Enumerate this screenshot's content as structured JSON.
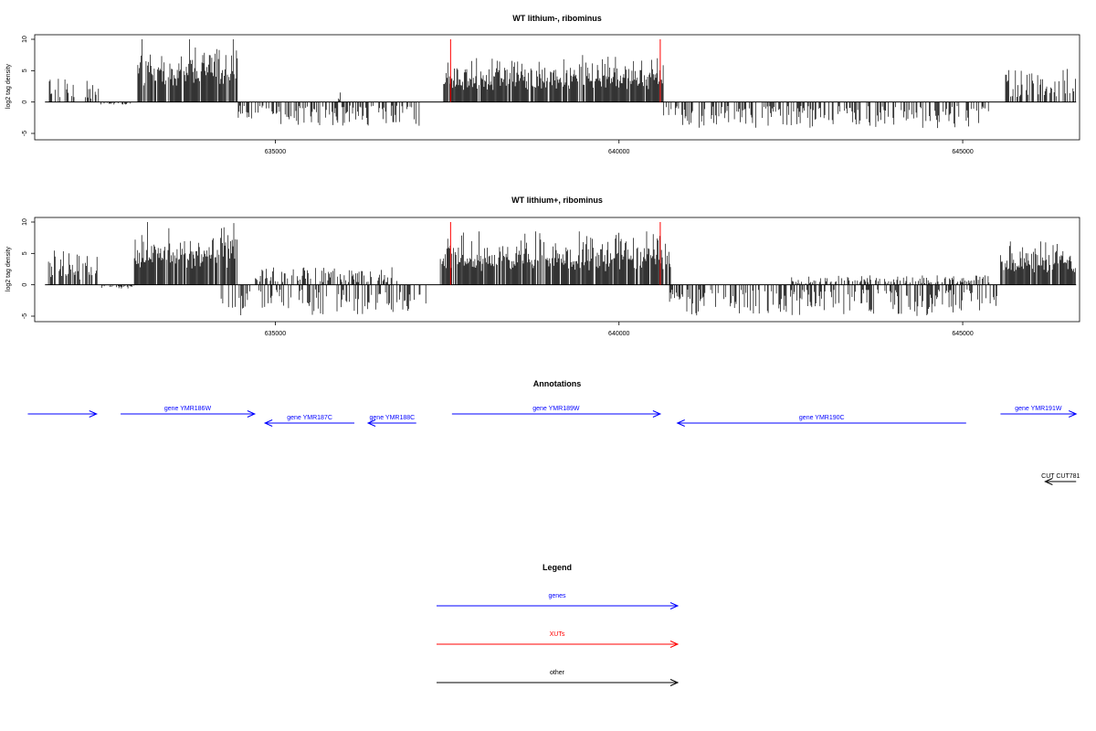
{
  "chart_data": [
    {
      "type": "bar",
      "title": "WT lithium-, ribominus",
      "ylabel": "log2 tag density",
      "xlim": [
        631500,
        646700
      ],
      "ylim": [
        -5,
        10
      ],
      "x_ticks": [
        635000,
        640000,
        645000
      ],
      "y_ticks": [
        -5,
        0,
        5,
        10
      ],
      "x_tick_labels": [
        "635000",
        "640000",
        "645000"
      ],
      "y_tick_labels": [
        "-5",
        "0",
        "5",
        "10"
      ],
      "vertical_markers": [
        {
          "x": 637550,
          "color": "#ff0000"
        },
        {
          "x": 640600,
          "color": "#ff0000"
        }
      ],
      "profile_segments": [
        {
          "start": 631700,
          "end": 632100,
          "strand": "+",
          "max": 4.5
        },
        {
          "start": 632200,
          "end": 632450,
          "strand": "+",
          "max": 3.5
        },
        {
          "start": 632450,
          "end": 632900,
          "strand": "-",
          "max": 0.4
        },
        {
          "start": 632980,
          "end": 633010,
          "strand": "+",
          "max": 2.5
        },
        {
          "start": 633000,
          "end": 634450,
          "strand": "+",
          "max": 10
        },
        {
          "start": 634450,
          "end": 637100,
          "strand": "-",
          "max": 3.8
        },
        {
          "start": 635920,
          "end": 635950,
          "strand": "+",
          "max": 2.0
        },
        {
          "start": 637450,
          "end": 640650,
          "strand": "+",
          "max": 7.5
        },
        {
          "start": 640650,
          "end": 645400,
          "strand": "-",
          "max": 4.2
        },
        {
          "start": 645600,
          "end": 646650,
          "strand": "+",
          "max": 5.5
        }
      ]
    },
    {
      "type": "bar",
      "title": "WT lithium+, ribominus",
      "ylabel": "log2 tag density",
      "xlim": [
        631500,
        646700
      ],
      "ylim": [
        -5,
        10
      ],
      "x_ticks": [
        635000,
        640000,
        645000
      ],
      "y_ticks": [
        -5,
        0,
        5,
        10
      ],
      "x_tick_labels": [
        "635000",
        "640000",
        "645000"
      ],
      "y_tick_labels": [
        "-5",
        "0",
        "5",
        "10"
      ],
      "vertical_markers": [
        {
          "x": 637550,
          "color": "#ff0000"
        },
        {
          "x": 640600,
          "color": "#ff0000"
        }
      ],
      "profile_segments": [
        {
          "start": 631700,
          "end": 632450,
          "strand": "+",
          "max": 5.5
        },
        {
          "start": 632450,
          "end": 632950,
          "strand": "-",
          "max": 0.6
        },
        {
          "start": 632950,
          "end": 634450,
          "strand": "+",
          "max": 10
        },
        {
          "start": 634200,
          "end": 637200,
          "strand": "-",
          "max": 5.0
        },
        {
          "start": 634700,
          "end": 636800,
          "strand": "+",
          "max": 2.8
        },
        {
          "start": 637400,
          "end": 640750,
          "strand": "+",
          "max": 8.5
        },
        {
          "start": 640700,
          "end": 645500,
          "strand": "-",
          "max": 5.0
        },
        {
          "start": 642500,
          "end": 645400,
          "strand": "+",
          "max": 1.5
        },
        {
          "start": 645550,
          "end": 646650,
          "strand": "+",
          "max": 7.0
        }
      ]
    }
  ],
  "annotations": {
    "title": "Annotations",
    "features": [
      {
        "label": "",
        "start": 631400,
        "end": 632400,
        "strand": "+",
        "color": "#0000ff",
        "row": 0
      },
      {
        "label": "gene YMR186W",
        "start": 632750,
        "end": 634700,
        "strand": "+",
        "color": "#0000ff",
        "row": 0
      },
      {
        "label": "gene YMR187C",
        "start": 634850,
        "end": 636150,
        "strand": "-",
        "color": "#0000ff",
        "row": 1
      },
      {
        "label": "gene YMR188C",
        "start": 636350,
        "end": 637050,
        "strand": "-",
        "color": "#0000ff",
        "row": 1
      },
      {
        "label": "gene YMR189W",
        "start": 637570,
        "end": 640600,
        "strand": "+",
        "color": "#0000ff",
        "row": 0
      },
      {
        "label": "gene YMR190C",
        "start": 640850,
        "end": 645050,
        "strand": "-",
        "color": "#0000ff",
        "row": 1
      },
      {
        "label": "gene YMR191W",
        "start": 645550,
        "end": 646650,
        "strand": "+",
        "color": "#0000ff",
        "row": 0
      },
      {
        "label": "CUT CUT781",
        "start": 646200,
        "end": 646650,
        "strand": "-",
        "color": "#000000",
        "row": 4
      }
    ]
  },
  "legend": {
    "title": "Legend",
    "items": [
      {
        "label": "genes",
        "color": "#0000ff"
      },
      {
        "label": "XUTs",
        "color": "#ff0000"
      },
      {
        "label": "other",
        "color": "#000000"
      }
    ]
  }
}
